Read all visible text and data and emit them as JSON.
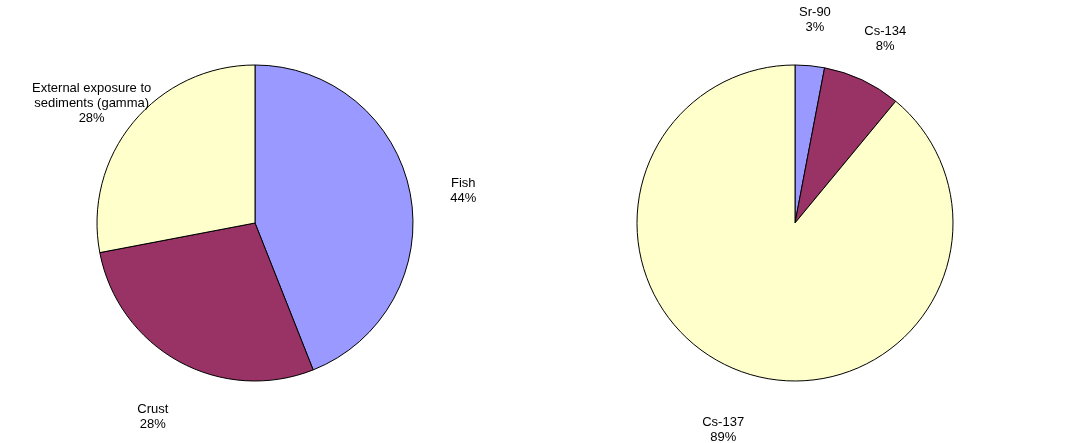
{
  "chart_data": [
    {
      "type": "pie",
      "categories": [
        "Fish",
        "Crust",
        "External exposure to sediments (gamma)"
      ],
      "values": [
        44,
        28,
        28
      ],
      "colors": [
        "#9999ff",
        "#993366",
        "#ffffcc"
      ],
      "value_labels": [
        "44%",
        "28%",
        "28%"
      ]
    },
    {
      "type": "pie",
      "categories": [
        "Sr-90",
        "Cs-134",
        "Cs-137"
      ],
      "values": [
        3,
        8,
        89
      ],
      "colors": [
        "#9999ff",
        "#993366",
        "#ffffcc"
      ],
      "value_labels": [
        "3%",
        "8%",
        "89%"
      ]
    }
  ]
}
